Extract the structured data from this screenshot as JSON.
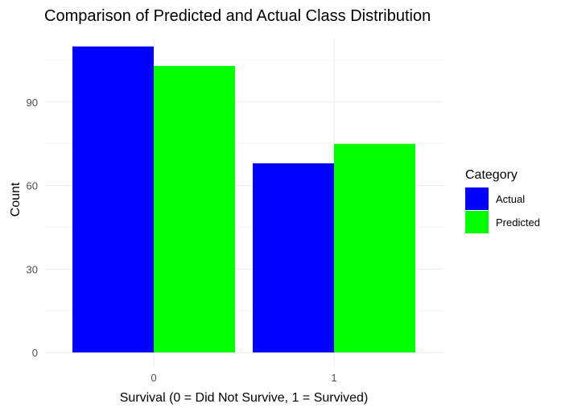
{
  "chart_data": {
    "type": "bar",
    "title": "Comparison of Predicted and Actual Class Distribution",
    "xlabel": "Survival (0 = Did Not Survive, 1 = Survived)",
    "ylabel": "Count",
    "categories": [
      "0",
      "1"
    ],
    "series": [
      {
        "name": "Actual",
        "color": "#0000ff",
        "values": [
          110,
          68
        ]
      },
      {
        "name": "Predicted",
        "color": "#00ff00",
        "values": [
          103,
          75
        ]
      }
    ],
    "ylim": [
      0,
      115.5
    ],
    "yticks": [
      0,
      30,
      60,
      90
    ],
    "grid": true,
    "legend": {
      "title": "Category",
      "position": "right"
    }
  }
}
